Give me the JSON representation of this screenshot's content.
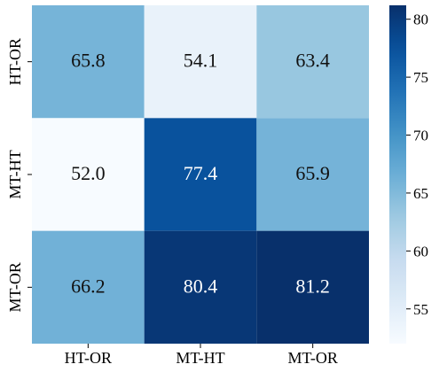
{
  "chart_data": {
    "type": "heatmap",
    "title": "",
    "xlabel": "",
    "ylabel": "",
    "x_categories": [
      "HT-OR",
      "MT-HT",
      "MT-OR"
    ],
    "y_categories": [
      "HT-OR",
      "MT-HT",
      "MT-OR"
    ],
    "values": [
      [
        65.8,
        54.1,
        63.4
      ],
      [
        52.0,
        77.4,
        65.9
      ],
      [
        66.2,
        80.4,
        81.2
      ]
    ],
    "value_labels": [
      [
        "65.8",
        "54.1",
        "63.4"
      ],
      [
        "52.0",
        "77.4",
        "65.9"
      ],
      [
        "66.2",
        "80.4",
        "81.2"
      ]
    ],
    "colormap": "Blues",
    "vmin": 52.0,
    "vmax": 81.2,
    "colorbar": {
      "ticks": [
        55,
        60,
        65,
        70,
        75,
        80
      ],
      "tick_labels": [
        "55",
        "60",
        "65",
        "70",
        "75",
        "80"
      ],
      "placement": "right"
    },
    "colors": {
      "light_text": "#ffffff",
      "dark_text": "#111111",
      "axis": "#000000"
    }
  }
}
